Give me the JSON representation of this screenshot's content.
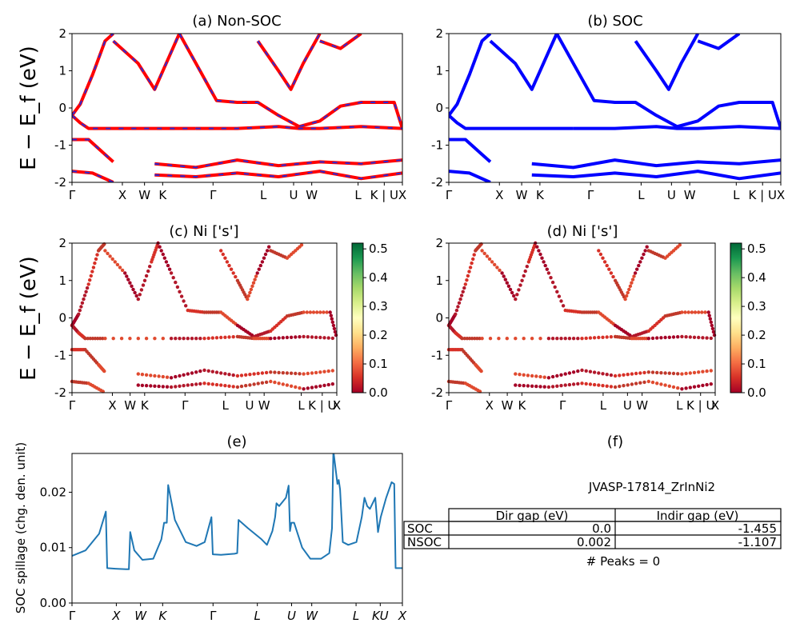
{
  "chart_data": [
    {
      "type": "line",
      "title": "(a) Non-SOC",
      "ylabel": "E − E_f (eV)",
      "ylim": [
        -2,
        2
      ],
      "yticks": [
        2,
        1,
        0,
        -1,
        -2
      ],
      "xticks": [
        "Γ",
        "X",
        "W",
        "K",
        "Γ",
        "L",
        "U",
        "W",
        "L",
        "K | U",
        "X"
      ],
      "series": [
        {
          "color": "#ff0000",
          "values": [
            [
              0,
              -0.2
            ],
            [
              0.2,
              0.1
            ],
            [
              0.5,
              0.9
            ],
            [
              0.8,
              1.8
            ],
            [
              1,
              2.0
            ]
          ]
        },
        {
          "color": "#ff0000",
          "values": [
            [
              0,
              -0.2
            ],
            [
              0.2,
              -0.4
            ],
            [
              0.4,
              -0.55
            ],
            [
              1,
              -0.55
            ],
            [
              3,
              -0.55
            ]
          ]
        },
        {
          "color": "#ff0000",
          "values": [
            [
              0,
              -0.85
            ],
            [
              0.4,
              -0.85
            ],
            [
              0.8,
              -1.25
            ],
            [
              1,
              -1.45
            ]
          ]
        },
        {
          "color": "#ff0000",
          "values": [
            [
              0,
              -1.7
            ],
            [
              0.5,
              -1.75
            ],
            [
              1,
              -2.0
            ]
          ]
        },
        {
          "color": "#ff0000",
          "values": [
            [
              1,
              1.8
            ],
            [
              1.6,
              1.2
            ],
            [
              2,
              0.5
            ],
            [
              2.4,
              1.5
            ],
            [
              2.6,
              2.0
            ]
          ]
        },
        {
          "color": "#ff0000",
          "values": [
            [
              2.6,
              2.0
            ],
            [
              3,
              1.2
            ],
            [
              3.5,
              0.2
            ],
            [
              4,
              0.15
            ],
            [
              4.5,
              0.15
            ],
            [
              5.0,
              -0.2
            ],
            [
              5.5,
              -0.5
            ],
            [
              6,
              -0.35
            ],
            [
              6.5,
              0.05
            ],
            [
              7,
              0.15
            ],
            [
              7.8,
              0.15
            ],
            [
              8,
              -0.55
            ]
          ]
        },
        {
          "color": "#ff0000",
          "values": [
            [
              3,
              -0.55
            ],
            [
              4,
              -0.55
            ],
            [
              5,
              -0.5
            ],
            [
              5.5,
              -0.55
            ],
            [
              6,
              -0.55
            ],
            [
              7,
              -0.5
            ],
            [
              8,
              -0.55
            ]
          ]
        },
        {
          "color": "#ff0000",
          "values": [
            [
              4.5,
              1.8
            ],
            [
              5.0,
              1.0
            ],
            [
              5.3,
              0.5
            ],
            [
              5.6,
              1.2
            ],
            [
              6,
              2.0
            ]
          ]
        },
        {
          "color": "#ff0000",
          "values": [
            [
              6,
              1.8
            ],
            [
              6.5,
              1.6
            ],
            [
              7,
              2.0
            ]
          ]
        },
        {
          "color": "#ff0000",
          "values": [
            [
              2,
              -1.5
            ],
            [
              3,
              -1.6
            ],
            [
              4,
              -1.4
            ],
            [
              5,
              -1.55
            ],
            [
              6,
              -1.45
            ],
            [
              7,
              -1.5
            ],
            [
              8,
              -1.4
            ]
          ]
        },
        {
          "color": "#ff0000",
          "values": [
            [
              2,
              -1.8
            ],
            [
              3,
              -1.85
            ],
            [
              4,
              -1.75
            ],
            [
              5,
              -1.85
            ],
            [
              6,
              -1.7
            ],
            [
              7,
              -1.9
            ],
            [
              8,
              -1.75
            ]
          ]
        }
      ]
    },
    {
      "type": "line",
      "title": "(b) SOC",
      "ylim": [
        -2,
        2
      ],
      "yticks": [
        2,
        1,
        0,
        -1,
        -2
      ],
      "xticks": [
        "Γ",
        "X",
        "W",
        "K",
        "Γ",
        "L",
        "U",
        "W",
        "L",
        "K | U",
        "X"
      ],
      "series": [
        {
          "color": "#0000ff",
          "values": [
            [
              0,
              -0.2
            ],
            [
              0.2,
              0.1
            ],
            [
              0.5,
              0.9
            ],
            [
              0.8,
              1.8
            ],
            [
              1,
              2.0
            ]
          ]
        },
        {
          "color": "#0000ff",
          "values": [
            [
              0,
              -0.2
            ],
            [
              0.2,
              -0.4
            ],
            [
              0.4,
              -0.55
            ],
            [
              1,
              -0.55
            ],
            [
              3,
              -0.55
            ]
          ]
        },
        {
          "color": "#0000ff",
          "values": [
            [
              0,
              -0.85
            ],
            [
              0.4,
              -0.85
            ],
            [
              0.8,
              -1.25
            ],
            [
              1,
              -1.45
            ]
          ]
        },
        {
          "color": "#0000ff",
          "values": [
            [
              0,
              -1.7
            ],
            [
              0.5,
              -1.75
            ],
            [
              1,
              -2.0
            ]
          ]
        },
        {
          "color": "#0000ff",
          "values": [
            [
              1,
              1.8
            ],
            [
              1.6,
              1.2
            ],
            [
              2,
              0.5
            ],
            [
              2.4,
              1.5
            ],
            [
              2.6,
              2.0
            ]
          ]
        },
        {
          "color": "#0000ff",
          "values": [
            [
              2.6,
              2.0
            ],
            [
              3,
              1.2
            ],
            [
              3.5,
              0.2
            ],
            [
              4,
              0.15
            ],
            [
              4.5,
              0.15
            ],
            [
              5.0,
              -0.2
            ],
            [
              5.5,
              -0.5
            ],
            [
              6,
              -0.35
            ],
            [
              6.5,
              0.05
            ],
            [
              7,
              0.15
            ],
            [
              7.8,
              0.15
            ],
            [
              8,
              -0.55
            ]
          ]
        },
        {
          "color": "#0000ff",
          "values": [
            [
              3,
              -0.55
            ],
            [
              4,
              -0.55
            ],
            [
              5,
              -0.5
            ],
            [
              5.5,
              -0.55
            ],
            [
              6,
              -0.55
            ],
            [
              7,
              -0.5
            ],
            [
              8,
              -0.55
            ]
          ]
        },
        {
          "color": "#0000ff",
          "values": [
            [
              4.5,
              1.8
            ],
            [
              5.0,
              1.0
            ],
            [
              5.3,
              0.5
            ],
            [
              5.6,
              1.2
            ],
            [
              6,
              2.0
            ]
          ]
        },
        {
          "color": "#0000ff",
          "values": [
            [
              6,
              1.8
            ],
            [
              6.5,
              1.6
            ],
            [
              7,
              2.0
            ]
          ]
        },
        {
          "color": "#0000ff",
          "values": [
            [
              2,
              -1.5
            ],
            [
              3,
              -1.6
            ],
            [
              4,
              -1.4
            ],
            [
              5,
              -1.55
            ],
            [
              6,
              -1.45
            ],
            [
              7,
              -1.5
            ],
            [
              8,
              -1.4
            ]
          ]
        },
        {
          "color": "#0000ff",
          "values": [
            [
              2,
              -1.8
            ],
            [
              3,
              -1.85
            ],
            [
              4,
              -1.75
            ],
            [
              5,
              -1.85
            ],
            [
              6,
              -1.7
            ],
            [
              7,
              -1.9
            ],
            [
              8,
              -1.75
            ]
          ]
        }
      ]
    },
    {
      "type": "scatter",
      "title": "(c)  Ni ['s']",
      "ylabel": "E − E_f (eV)",
      "ylim": [
        -2,
        2
      ],
      "yticks": [
        2,
        1,
        0,
        -1,
        -2
      ],
      "xticks": [
        "Γ",
        "X",
        "W",
        "K",
        "Γ",
        "L",
        "U",
        "W",
        "L",
        "K | U",
        "X"
      ],
      "colorbar": {
        "ticks": [
          "0.5",
          "0.4",
          "0.3",
          "0.2",
          "0.1",
          "0.0"
        ],
        "range": [
          0,
          0.52
        ]
      }
    },
    {
      "type": "scatter",
      "title": "(d) Ni ['s']",
      "ylim": [
        -2,
        2
      ],
      "yticks": [
        2,
        1,
        0,
        -1,
        -2
      ],
      "xticks": [
        "Γ",
        "X",
        "W",
        "K",
        "Γ",
        "L",
        "U",
        "W",
        "L",
        "K | U",
        "X"
      ],
      "colorbar": {
        "ticks": [
          "0.5",
          "0.4",
          "0.3",
          "0.2",
          "0.1",
          "0.0"
        ],
        "range": [
          0,
          0.52
        ]
      }
    },
    {
      "type": "line",
      "title": "(e)",
      "ylabel": "SOC spillage (chg. den. unit)",
      "ylim": [
        0,
        0.027
      ],
      "yticks": [
        "0.00",
        "0.01",
        "0.02"
      ],
      "xticks": [
        "Γ",
        "X",
        "W",
        "K",
        "Γ",
        "L",
        "U",
        "W",
        "L",
        "KU",
        "X"
      ],
      "series": [
        {
          "color": "#1f77b4",
          "values": [
            [
              0,
              0.0085
            ],
            [
              0.5,
              0.0095
            ],
            [
              1.0,
              0.0125
            ],
            [
              1.25,
              0.0165
            ],
            [
              1.3,
              0.0063
            ],
            [
              1.6,
              0.0062
            ],
            [
              2.0,
              0.0061
            ],
            [
              2.1,
              0.0061
            ],
            [
              2.15,
              0.0128
            ],
            [
              2.3,
              0.0095
            ],
            [
              2.6,
              0.0078
            ],
            [
              3.0,
              0.008
            ],
            [
              3.3,
              0.0115
            ],
            [
              3.4,
              0.0145
            ],
            [
              3.5,
              0.0145
            ],
            [
              3.55,
              0.0213
            ],
            [
              3.8,
              0.015
            ],
            [
              4.2,
              0.011
            ],
            [
              4.6,
              0.0103
            ],
            [
              4.9,
              0.011
            ],
            [
              5.15,
              0.0155
            ],
            [
              5.2,
              0.0088
            ],
            [
              5.5,
              0.0087
            ],
            [
              6.0,
              0.0089
            ],
            [
              6.1,
              0.009
            ],
            [
              6.15,
              0.015
            ],
            [
              6.5,
              0.0135
            ],
            [
              7.0,
              0.0115
            ],
            [
              7.2,
              0.0105
            ],
            [
              7.4,
              0.013
            ],
            [
              7.5,
              0.0155
            ],
            [
              7.55,
              0.018
            ],
            [
              7.65,
              0.0175
            ],
            [
              7.9,
              0.019
            ],
            [
              8.0,
              0.0212
            ],
            [
              8.05,
              0.013
            ],
            [
              8.1,
              0.0145
            ],
            [
              8.2,
              0.0145
            ],
            [
              8.5,
              0.01
            ],
            [
              8.8,
              0.008
            ],
            [
              9.2,
              0.008
            ],
            [
              9.5,
              0.009
            ],
            [
              9.6,
              0.0135
            ],
            [
              9.65,
              0.0275
            ],
            [
              9.8,
              0.0215
            ],
            [
              9.85,
              0.0222
            ],
            [
              9.9,
              0.0205
            ],
            [
              10.0,
              0.011
            ],
            [
              10.2,
              0.0105
            ],
            [
              10.5,
              0.011
            ],
            [
              10.7,
              0.0155
            ],
            [
              10.8,
              0.019
            ],
            [
              10.9,
              0.0175
            ],
            [
              11.0,
              0.017
            ],
            [
              11.2,
              0.019
            ],
            [
              11.3,
              0.0128
            ],
            [
              11.4,
              0.0155
            ],
            [
              11.6,
              0.019
            ],
            [
              11.8,
              0.0218
            ],
            [
              11.9,
              0.0215
            ],
            [
              11.95,
              0.0063
            ],
            [
              12.2,
              0.0063
            ]
          ]
        }
      ]
    }
  ],
  "panel_f": {
    "title": "(f)",
    "heading": "JVASP-17814_ZrInNi2",
    "table": {
      "headers": [
        "",
        "Dir gap (eV)",
        "Indir gap (eV)"
      ],
      "rows": [
        [
          "SOC",
          "0.0",
          "-1.455"
        ],
        [
          "NSOC",
          "0.002",
          "-1.107"
        ]
      ]
    },
    "footer": "# Peaks = 0"
  }
}
